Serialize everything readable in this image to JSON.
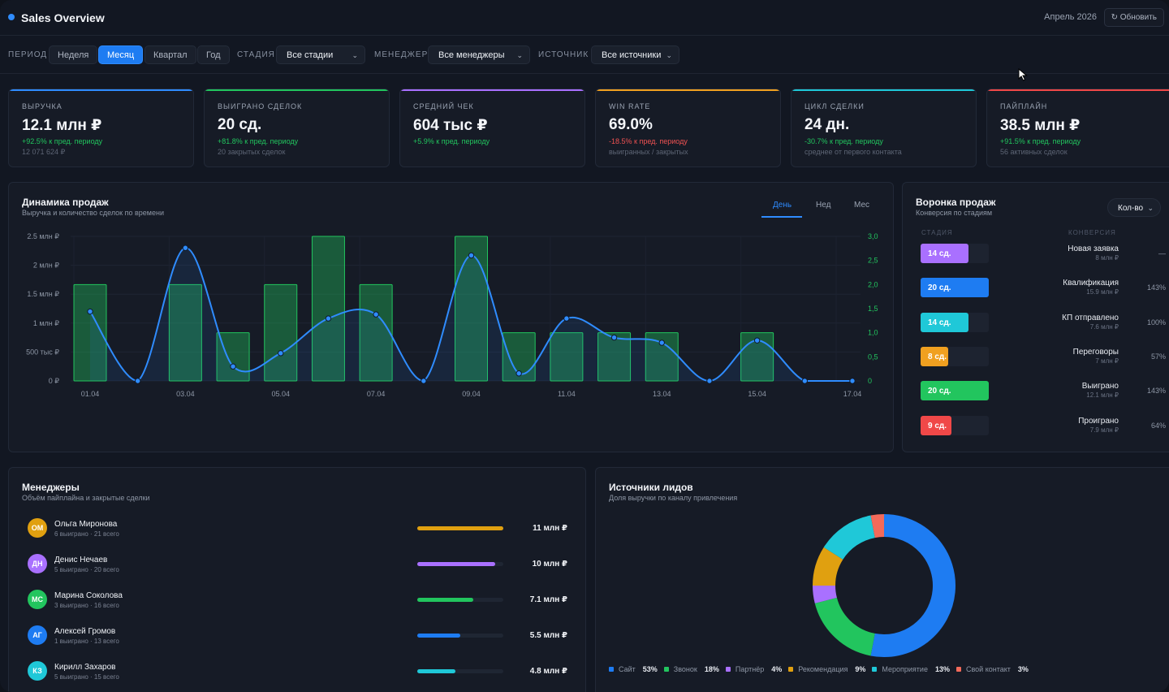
{
  "header": {
    "title": "Sales Overview",
    "date": "Апрель 2026",
    "refresh_label": "↻ Обновить"
  },
  "filters": {
    "period_label": "ПЕРИОД",
    "period_options": [
      "Неделя",
      "Месяц",
      "Квартал",
      "Год"
    ],
    "period_selected": "Месяц",
    "stage_label": "СТАДИЯ",
    "stage_value": "Все стадии",
    "manager_label": "МЕНЕДЖЕР",
    "manager_value": "Все менеджеры",
    "source_label": "ИСТОЧНИК",
    "source_value": "Все источники"
  },
  "kpis": [
    {
      "label": "ВЫРУЧКА",
      "value": "12.1 млн ₽",
      "delta": "+92.5% к пред. периоду",
      "delta_sign": "pos",
      "sub": "12 071 624 ₽",
      "color": "#2f8cff"
    },
    {
      "label": "ВЫИГРАНО СДЕЛОК",
      "value": "20 сд.",
      "delta": "+81.8% к пред. периоду",
      "delta_sign": "pos",
      "sub": "20 закрытых сделок",
      "color": "#22c55e"
    },
    {
      "label": "СРЕДНИЙ ЧЕК",
      "value": "604 тыс ₽",
      "delta": "+5.9% к пред. периоду",
      "delta_sign": "pos",
      "sub": "",
      "color": "#a970ff"
    },
    {
      "label": "WIN RATE",
      "value": "69.0%",
      "delta": "-18.5% к пред. периоду",
      "delta_sign": "neg",
      "sub": "выигранных / закрытых",
      "color": "#f0a020"
    },
    {
      "label": "ЦИКЛ СДЕЛКИ",
      "value": "24 дн.",
      "delta": "-30.7% к пред. периоду",
      "delta_sign": "pos",
      "sub": "среднее от первого контакта",
      "color": "#1fc8d8"
    },
    {
      "label": "ПАЙПЛАЙН",
      "value": "38.5 млн ₽",
      "delta": "+91.5% к пред. периоду",
      "delta_sign": "pos",
      "sub": "56 активных сделок",
      "color": "#f04848"
    }
  ],
  "sales_chart": {
    "title": "Динамика продаж",
    "subtitle": "Выручка и количество сделок по времени",
    "tabs": [
      "День",
      "Нед",
      "Мес"
    ],
    "active_tab": "День"
  },
  "chart_data": {
    "type": "bar",
    "x": [
      "01.04",
      "02.04",
      "03.04",
      "04.04",
      "05.04",
      "06.04",
      "07.04",
      "08.04",
      "09.04",
      "10.04",
      "11.04",
      "12.04",
      "13.04",
      "14.04",
      "15.04",
      "16.04",
      "17.04"
    ],
    "x_tick_labels": [
      "01.04",
      "03.04",
      "05.04",
      "07.04",
      "09.04",
      "11.04",
      "13.04",
      "15.04",
      "17.04"
    ],
    "series": [
      {
        "type": "bar",
        "axis": "right",
        "values": [
          2,
          0,
          2,
          1,
          2,
          3,
          2,
          0,
          3,
          1,
          1,
          1,
          1,
          0,
          1,
          0,
          0
        ]
      },
      {
        "type": "line",
        "axis": "left",
        "values": [
          1.2,
          0,
          2.3,
          0.25,
          0.48,
          1.08,
          1.15,
          0,
          2.17,
          0.13,
          1.08,
          0.75,
          0.66,
          0,
          0.7,
          0,
          0
        ]
      }
    ],
    "y_left_ticks": [
      "0 ₽",
      "500 тыс ₽",
      "1 млн ₽",
      "1.5 млн ₽",
      "2 млн ₽",
      "2.5 млн ₽"
    ],
    "y_left_range": [
      0,
      2.5
    ],
    "y_right_ticks": [
      "0",
      "0,5",
      "1,0",
      "1,5",
      "2,0",
      "2,5",
      "3,0"
    ],
    "y_right_range": [
      0,
      3
    ],
    "bar_color": "#22c55e",
    "line_color": "#2f8cff",
    "grid": true
  },
  "funnel": {
    "title": "Воронка продаж",
    "subtitle": "Конверсия по стадиям",
    "mode": "Кол-во",
    "col_stage": "СТАДИЯ",
    "col_conv": "КОНВЕРСИЯ",
    "stages": [
      {
        "count": "14 сд.",
        "fill": 0.7,
        "color": "#a970ff",
        "name": "Новая заявка",
        "amount": "8 млн ₽",
        "conv": "—"
      },
      {
        "count": "20 сд.",
        "fill": 1.0,
        "color": "#1e7cf2",
        "name": "Квалификация",
        "amount": "15.9 млн ₽",
        "conv": "143%"
      },
      {
        "count": "14 сд.",
        "fill": 0.7,
        "color": "#1fc8d8",
        "name": "КП отправлено",
        "amount": "7.6 млн ₽",
        "conv": "100%"
      },
      {
        "count": "8 сд.",
        "fill": 0.4,
        "color": "#f0a020",
        "name": "Переговоры",
        "amount": "7 млн ₽",
        "conv": "57%"
      },
      {
        "count": "20 сд.",
        "fill": 1.0,
        "color": "#22c55e",
        "name": "Выиграно",
        "amount": "12.1 млн ₽",
        "conv": "143%"
      },
      {
        "count": "9 сд.",
        "fill": 0.45,
        "color": "#f04848",
        "name": "Проиграно",
        "amount": "7.9 млн ₽",
        "conv": "64%"
      }
    ]
  },
  "managers": {
    "title": "Менеджеры",
    "subtitle": "Объём пайплайна и закрытые сделки",
    "rows": [
      {
        "initials": "ОМ",
        "color": "#e0a010",
        "name": "Ольга Миронова",
        "stats": "6 выиграно · 21 всего",
        "value": "11 млн ₽",
        "fill": 1.0
      },
      {
        "initials": "ДН",
        "color": "#a970ff",
        "name": "Денис Нечаев",
        "stats": "5 выиграно · 20 всего",
        "value": "10 млн ₽",
        "fill": 0.91
      },
      {
        "initials": "МС",
        "color": "#22c55e",
        "name": "Марина Соколова",
        "stats": "3 выиграно · 16 всего",
        "value": "7.1 млн ₽",
        "fill": 0.65
      },
      {
        "initials": "АГ",
        "color": "#1e7cf2",
        "name": "Алексей Громов",
        "stats": "1 выиграно · 13 всего",
        "value": "5.5 млн ₽",
        "fill": 0.5
      },
      {
        "initials": "КЗ",
        "color": "#1fc8d8",
        "name": "Кирилл Захаров",
        "stats": "5 выиграно · 15 всего",
        "value": "4.8 млн ₽",
        "fill": 0.44
      }
    ]
  },
  "sources": {
    "title": "Источники лидов",
    "subtitle": "Доля выручки по каналу привлечения",
    "items": [
      {
        "name": "Сайт",
        "pct": "53%",
        "share": 53,
        "color": "#1e7cf2"
      },
      {
        "name": "Звонок",
        "pct": "18%",
        "share": 18,
        "color": "#22c55e"
      },
      {
        "name": "Партнёр",
        "pct": "4%",
        "share": 4,
        "color": "#a970ff"
      },
      {
        "name": "Рекомендация",
        "pct": "9%",
        "share": 9,
        "color": "#e0a010"
      },
      {
        "name": "Мероприятие",
        "pct": "13%",
        "share": 13,
        "color": "#1fc8d8"
      },
      {
        "name": "Свой контакт",
        "pct": "3%",
        "share": 3,
        "color": "#f26a5a"
      }
    ]
  }
}
